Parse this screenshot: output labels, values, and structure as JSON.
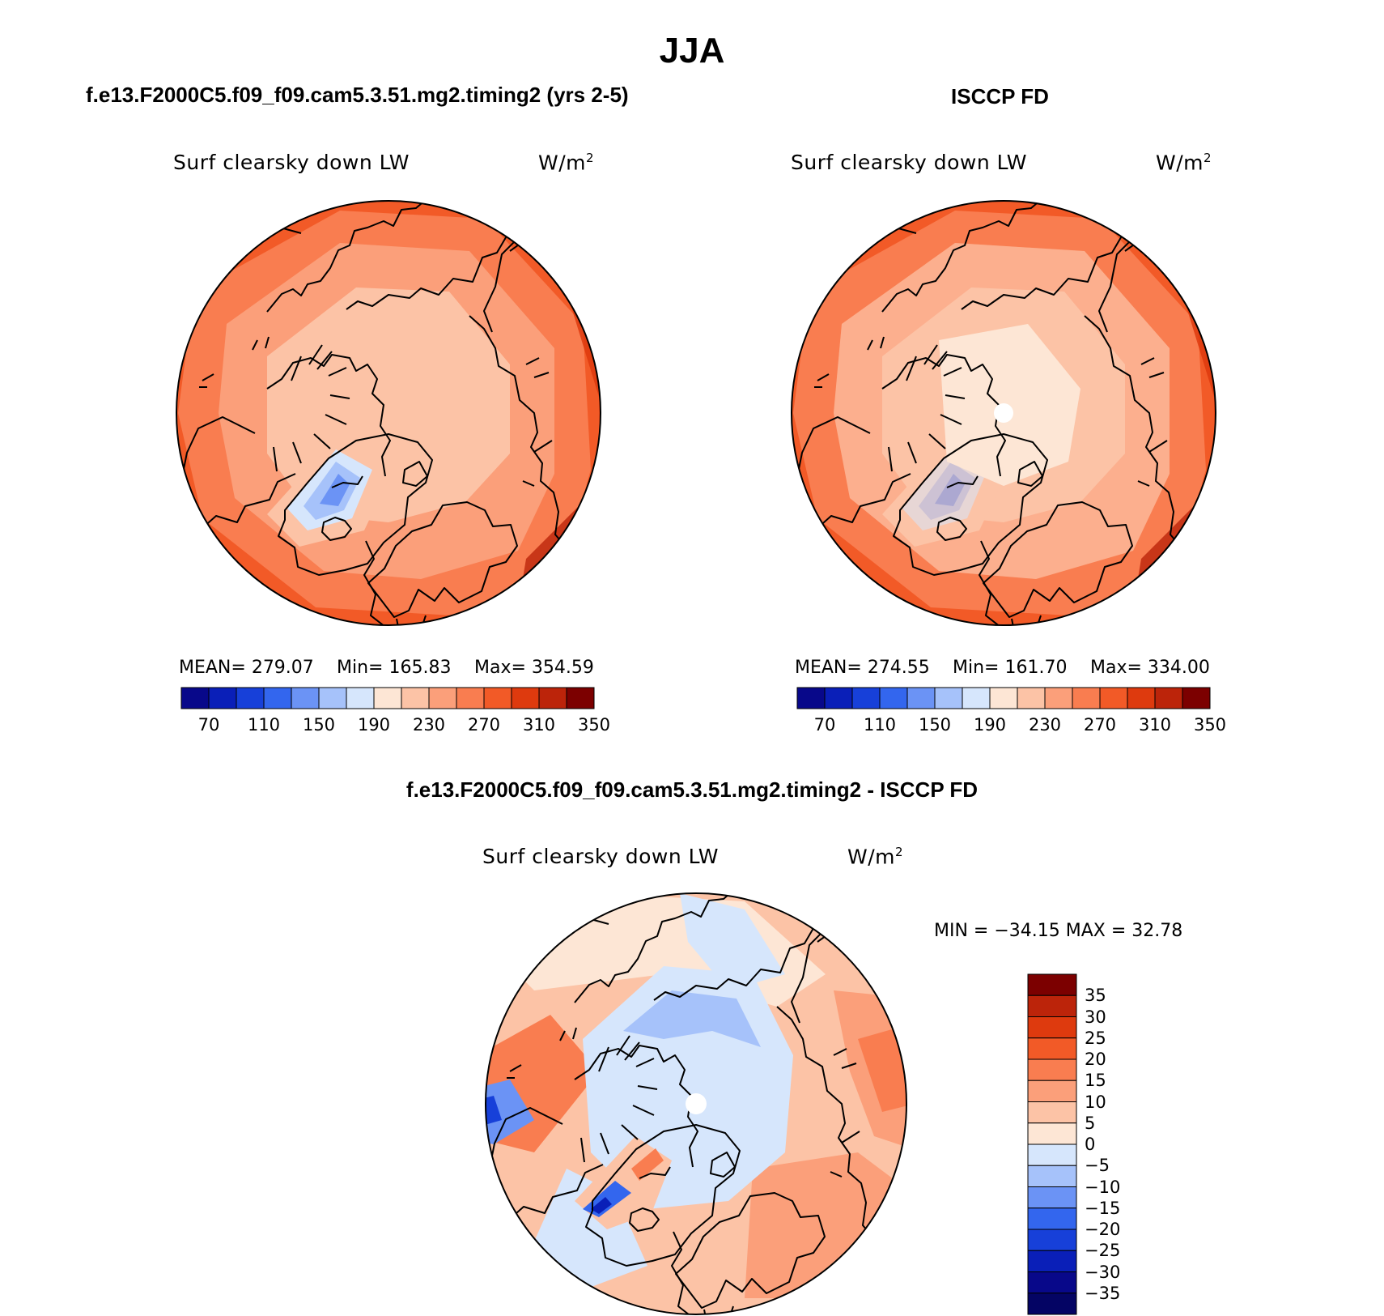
{
  "figure": {
    "title": "JJA",
    "panel_left": {
      "case_title": "f.e13.F2000C5.f09_f09.cam5.3.51.mg2.timing2 (yrs 2-5)",
      "variable": "Surf clearsky down LW",
      "units_base": "W/m",
      "units_exp": "2",
      "mean": "MEAN= 279.07",
      "min": "Min= 165.83",
      "max": "Max= 354.59"
    },
    "panel_right": {
      "case_title": "ISCCP FD",
      "variable": "Surf clearsky down LW",
      "units_base": "W/m",
      "units_exp": "2",
      "mean": "MEAN= 274.55",
      "min": "Min= 161.70",
      "max": "Max= 334.00"
    },
    "panel_diff": {
      "case_title": "f.e13.F2000C5.f09_f09.cam5.3.51.mg2.timing2 - ISCCP FD",
      "variable": "Surf clearsky down LW",
      "units_base": "W/m",
      "units_exp": "2",
      "minmax": "MIN = −34.15 MAX =  32.78"
    }
  },
  "colorbar_abs": {
    "labels": [
      "70",
      "110",
      "150",
      "190",
      "230",
      "270",
      "310",
      "350"
    ],
    "colors": [
      "#08088a",
      "#0a1fb8",
      "#1740d9",
      "#3366ee",
      "#6b93f5",
      "#a6c2fa",
      "#d6e6fc",
      "#fde6d5",
      "#fcc3a6",
      "#fb9f7a",
      "#f97d50",
      "#f25a27",
      "#de3a0e",
      "#bc240a",
      "#7c0000"
    ]
  },
  "colorbar_diff": {
    "labels": [
      "35",
      "30",
      "25",
      "20",
      "15",
      "10",
      "5",
      "0",
      "−5",
      "−10",
      "−15",
      "−20",
      "−25",
      "−30",
      "−35"
    ],
    "colors": [
      "#7c0000",
      "#bc240a",
      "#de3a0e",
      "#f25a27",
      "#f97d50",
      "#fb9f7a",
      "#fcc3a6",
      "#fde6d5",
      "#d6e6fc",
      "#a6c2fa",
      "#6b93f5",
      "#3366ee",
      "#1740d9",
      "#0a1fb8",
      "#08088a",
      "#040464"
    ]
  }
}
